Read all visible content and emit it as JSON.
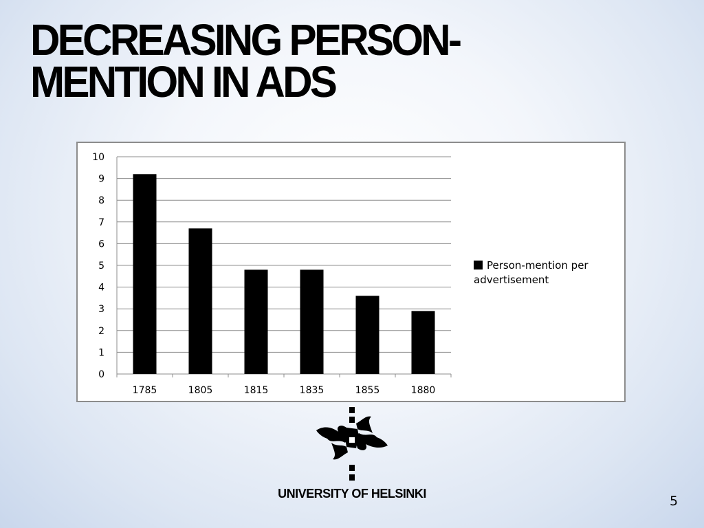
{
  "slide": {
    "title": "DECREASING PERSON-MENTION IN ADS",
    "page_number": "5",
    "logo_text": "UNIVERSITY OF HELSINKI"
  },
  "chart_data": {
    "type": "bar",
    "title": "",
    "xlabel": "",
    "ylabel": "",
    "categories": [
      "1785",
      "1805",
      "1815",
      "1835",
      "1855",
      "1880"
    ],
    "series": [
      {
        "name": "Person-mention per advertisement",
        "values": [
          9.2,
          6.7,
          4.8,
          4.8,
          3.6,
          2.9
        ],
        "color": "#000000"
      }
    ],
    "ylim": [
      0,
      10
    ],
    "yticks": [
      "0",
      "1",
      "2",
      "3",
      "4",
      "5",
      "6",
      "7",
      "8",
      "9",
      "10"
    ],
    "grid": true,
    "legend_position": "right"
  }
}
